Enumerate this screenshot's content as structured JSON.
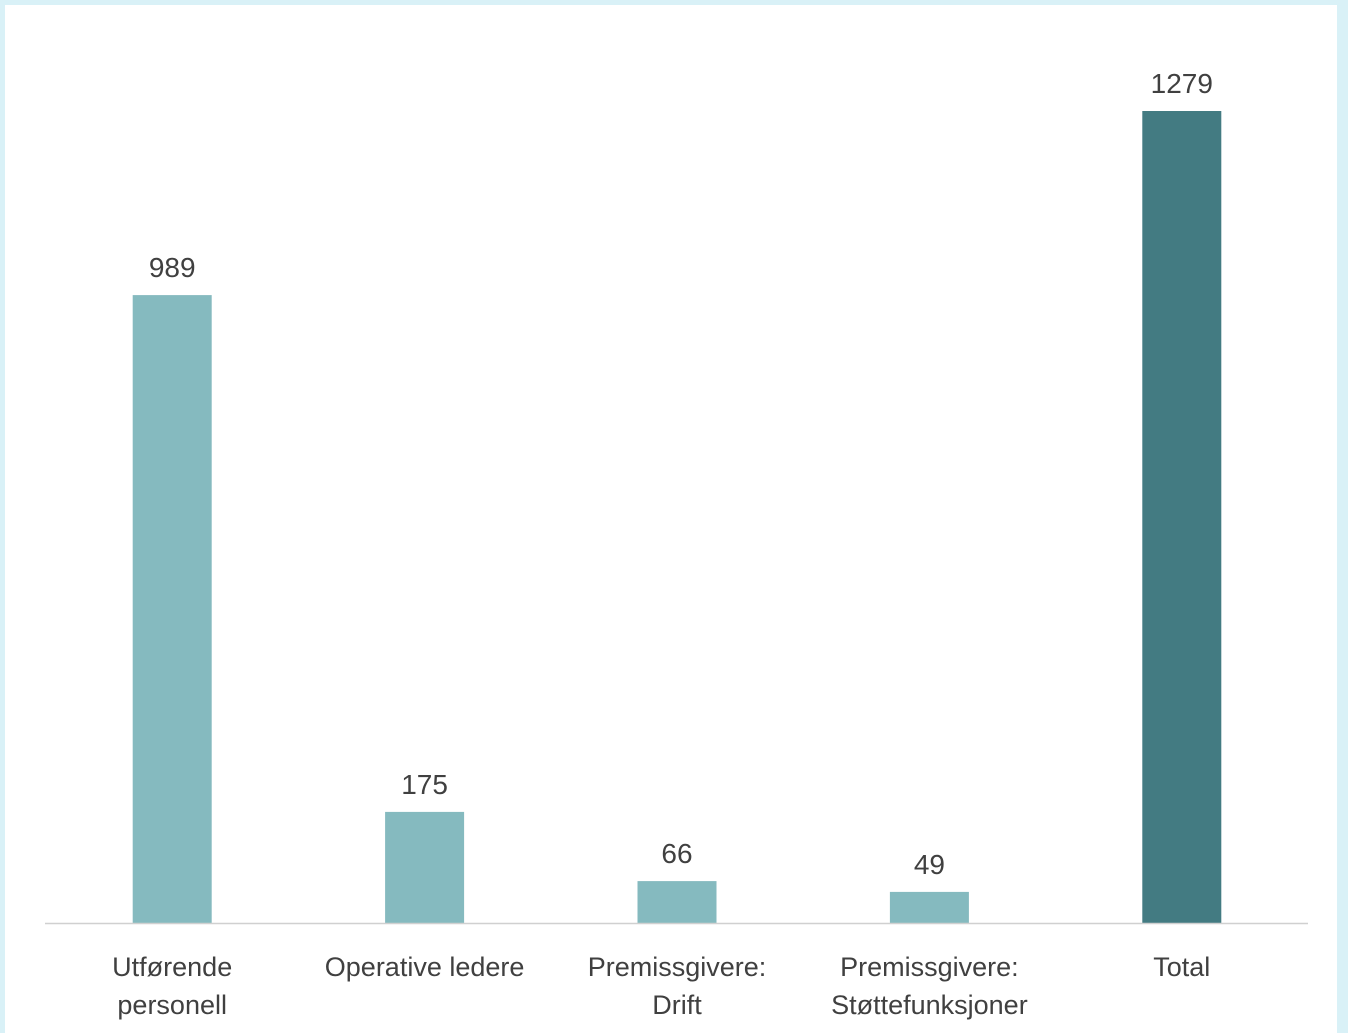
{
  "chart_data": {
    "type": "bar",
    "categories": [
      [
        "Utførende",
        "personell"
      ],
      [
        "Operative ledere"
      ],
      [
        "Premissgivere:",
        "Drift"
      ],
      [
        "Premissgivere:",
        "Støttefunksjoner"
      ],
      [
        "Total"
      ]
    ],
    "values": [
      989,
      175,
      66,
      49,
      1279
    ],
    "data_labels": [
      "989",
      "175",
      "66",
      "49",
      "1279"
    ],
    "bar_colors": [
      "#85babf",
      "#85babf",
      "#85babf",
      "#85babf",
      "#437b82"
    ],
    "title": "",
    "xlabel": "",
    "ylabel": "",
    "ylim": [
      0,
      1279
    ],
    "grid": false,
    "legend": "none"
  }
}
